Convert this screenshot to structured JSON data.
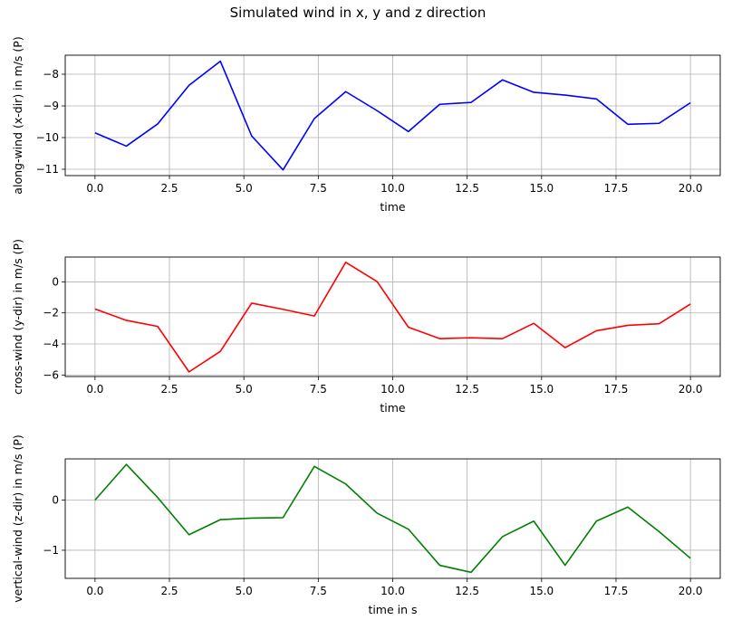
{
  "figure": {
    "title": "Simulated wind in x, y and z direction"
  },
  "chart_data": [
    {
      "type": "line",
      "title": "",
      "xlabel": "time",
      "ylabel": "along-wind (x-dir) in m/s (P)",
      "color": "#0000ff",
      "grid": true,
      "xlim": [
        -1.0,
        21.0
      ],
      "ylim": [
        -11.2,
        -7.4
      ],
      "xticks": [
        0.0,
        2.5,
        5.0,
        7.5,
        10.0,
        12.5,
        15.0,
        17.5,
        20.0
      ],
      "xtick_labels": [
        "0.0",
        "2.5",
        "5.0",
        "7.5",
        "10.0",
        "12.5",
        "15.0",
        "17.5",
        "20.0"
      ],
      "yticks": [
        -11,
        -10,
        -9,
        -8
      ],
      "ytick_labels": [
        "−11",
        "−10",
        "−9",
        "−8"
      ],
      "x": [
        0.0,
        1.053,
        2.105,
        3.158,
        4.211,
        5.263,
        6.316,
        7.368,
        8.421,
        9.474,
        10.526,
        11.579,
        12.632,
        13.684,
        14.737,
        15.789,
        16.842,
        17.895,
        18.947,
        20.0
      ],
      "y": [
        -9.85,
        -10.27,
        -9.57,
        -8.35,
        -7.59,
        -9.95,
        -11.02,
        -9.4,
        -8.55,
        -9.15,
        -9.81,
        -8.95,
        -8.89,
        -8.18,
        -8.57,
        -8.66,
        -8.78,
        -9.58,
        -9.55,
        -8.9
      ]
    },
    {
      "type": "line",
      "title": "",
      "xlabel": "time",
      "ylabel": "cross-wind (y-dir) in m/s (P)",
      "color": "#ff0000",
      "grid": true,
      "xlim": [
        -1.0,
        21.0
      ],
      "ylim": [
        -6.1,
        1.6
      ],
      "xticks": [
        0.0,
        2.5,
        5.0,
        7.5,
        10.0,
        12.5,
        15.0,
        17.5,
        20.0
      ],
      "xtick_labels": [
        "0.0",
        "2.5",
        "5.0",
        "7.5",
        "10.0",
        "12.5",
        "15.0",
        "17.5",
        "20.0"
      ],
      "yticks": [
        -6,
        -4,
        -2,
        0
      ],
      "ytick_labels": [
        "−6",
        "−4",
        "−2",
        "0"
      ],
      "x": [
        0.0,
        1.053,
        2.105,
        3.158,
        4.211,
        5.263,
        6.316,
        7.368,
        8.421,
        9.474,
        10.526,
        11.579,
        12.632,
        13.684,
        14.737,
        15.789,
        16.842,
        17.895,
        18.947,
        20.0
      ],
      "y": [
        -1.75,
        -2.48,
        -2.87,
        -5.8,
        -4.48,
        -1.37,
        -1.77,
        -2.2,
        1.26,
        0.02,
        -2.92,
        -3.66,
        -3.6,
        -3.66,
        -2.67,
        -4.24,
        -3.15,
        -2.8,
        -2.7,
        -1.43
      ]
    },
    {
      "type": "line",
      "title": "",
      "xlabel": "time in s",
      "ylabel": "vertical-wind (z-dir) in m/s (P)",
      "color": "#008000",
      "grid": true,
      "xlim": [
        -1.0,
        21.0
      ],
      "ylim": [
        -1.56,
        0.82
      ],
      "xticks": [
        0.0,
        2.5,
        5.0,
        7.5,
        10.0,
        12.5,
        15.0,
        17.5,
        20.0
      ],
      "xtick_labels": [
        "0.0",
        "2.5",
        "5.0",
        "7.5",
        "10.0",
        "12.5",
        "15.0",
        "17.5",
        "20.0"
      ],
      "yticks": [
        -1,
        0
      ],
      "ytick_labels": [
        "−1",
        "0"
      ],
      "x": [
        0.0,
        1.053,
        2.105,
        3.158,
        4.211,
        5.263,
        6.316,
        7.368,
        8.421,
        9.474,
        10.526,
        11.579,
        12.632,
        13.684,
        14.737,
        15.789,
        16.842,
        17.895,
        18.947,
        20.0
      ],
      "y": [
        0.0,
        0.71,
        0.05,
        -0.69,
        -0.39,
        -0.36,
        -0.35,
        0.67,
        0.32,
        -0.26,
        -0.58,
        -1.3,
        -1.44,
        -0.73,
        -0.42,
        -1.3,
        -0.42,
        -0.14,
        -0.63,
        -1.16
      ]
    }
  ]
}
